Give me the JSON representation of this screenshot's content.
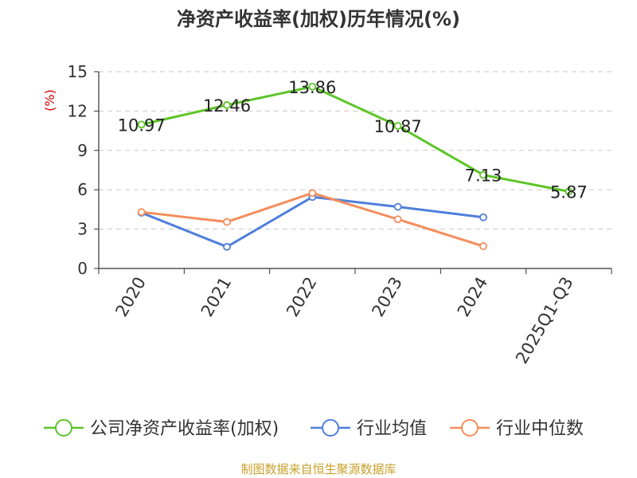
{
  "chart_data": {
    "type": "line",
    "title": "净资产收益率(加权)历年情况(%)",
    "ylabel": "(%)",
    "categories": [
      "2020",
      "2021",
      "2022",
      "2023",
      "2024",
      "2025Q1-Q3"
    ],
    "ylim": [
      0,
      15
    ],
    "yticks": [
      0,
      3,
      6,
      9,
      12,
      15
    ],
    "grid": true,
    "legend_position": "bottom",
    "series": [
      {
        "name": "公司净资产收益率(加权)",
        "color": "#5dc528",
        "values": [
          10.97,
          12.46,
          13.86,
          10.87,
          7.13,
          5.87
        ],
        "labels": [
          "10.97",
          "12.46",
          "13.86",
          "10.87",
          "7.13",
          "5.87"
        ]
      },
      {
        "name": "行业均值",
        "color": "#4f7fdc",
        "values": [
          4.25,
          1.65,
          5.45,
          4.7,
          3.9,
          null
        ]
      },
      {
        "name": "行业中位数",
        "color": "#f58d5c",
        "values": [
          4.3,
          3.55,
          5.75,
          3.75,
          1.7,
          null
        ]
      }
    ]
  },
  "footer": {
    "source": "制图数据来自恒生聚源数据库"
  }
}
